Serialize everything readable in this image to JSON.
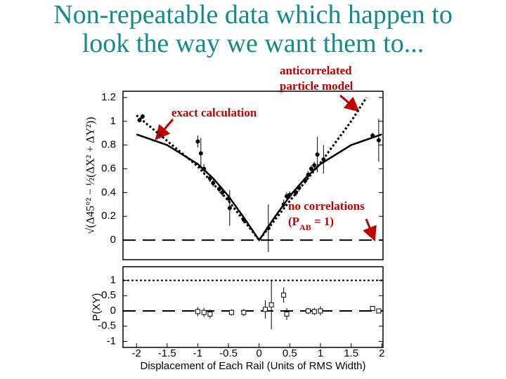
{
  "title": [
    "Non-repeatable data which happen to",
    "look the way we want them to..."
  ],
  "chart_data": [
    {
      "type": "scatter",
      "y_label": "√(Δ45°² − ½(ΔX² + ΔY²))",
      "xlim": [
        -2.22,
        2.02
      ],
      "ylim": [
        -0.165,
        1.253
      ],
      "yticks": [
        0,
        0.2,
        0.4,
        0.6,
        0.8,
        1,
        1.2
      ],
      "x": [
        -1.95,
        -1.9,
        -1.0,
        -0.95,
        -0.9,
        -0.8,
        -0.75,
        -0.65,
        -0.6,
        -0.5,
        -0.48,
        -0.25,
        0.15,
        0.4,
        0.45,
        0.5,
        0.6,
        0.65,
        0.75,
        0.8,
        0.85,
        0.9,
        0.95,
        1.05,
        1.85,
        1.95
      ],
      "values": [
        1.01,
        1.04,
        0.83,
        0.73,
        0.6,
        0.52,
        0.48,
        0.43,
        0.4,
        0.35,
        0.27,
        0.17,
        0.1,
        0.3,
        0.37,
        0.38,
        0.4,
        0.44,
        0.5,
        0.55,
        0.6,
        0.63,
        0.72,
        0.68,
        0.88,
        0.84
      ],
      "errors": [
        0.02,
        0.02,
        0.05,
        0.13,
        0.04,
        0.03,
        0.03,
        0.03,
        0.03,
        0.03,
        0.15,
        0.03,
        0.2,
        0.04,
        0.03,
        0.03,
        0.03,
        0.03,
        0.03,
        0.03,
        0.03,
        0.03,
        0.15,
        0.12,
        0.02,
        0.18
      ],
      "color": "#000000",
      "lines": [
        {
          "style": "solid",
          "color": "#000000",
          "x": [
            -2,
            -1.5,
            -1,
            -0.75,
            -0.5,
            -0.25,
            0,
            0.25,
            0.5,
            0.75,
            1,
            1.5,
            2
          ],
          "values": [
            0.89,
            0.8,
            0.64,
            0.52,
            0.37,
            0.19,
            0,
            0.19,
            0.37,
            0.52,
            0.64,
            0.8,
            0.89
          ]
        },
        {
          "style": "dotted",
          "color": "#000000",
          "x": [
            -2,
            -1,
            -0.5,
            0,
            0.5,
            1,
            1.5,
            1.75
          ],
          "values": [
            1.05,
            0.62,
            0.33,
            0,
            0.33,
            0.65,
            1.0,
            1.2
          ]
        }
      ],
      "hlines": [
        {
          "value": 0,
          "style": "dashed"
        }
      ],
      "annotations": [
        {
          "lines": [
            "anticorrelated",
            "particle model"
          ]
        },
        {
          "lines": [
            "exact calculation"
          ]
        },
        {
          "lines": [
            "no correlations",
            [
              "(P",
              "AB",
              " = 1)"
            ]
          ]
        }
      ]
    },
    {
      "type": "scatter",
      "x_label": "Displacement of Each Rail (Units of RMS Width)",
      "y_label": "P(XY)",
      "xlim": [
        -2.22,
        2.02
      ],
      "ylim": [
        -1.195,
        1.448
      ],
      "xticks": [
        -2,
        -1.5,
        -1,
        -0.5,
        0,
        0.5,
        1,
        1.5,
        2
      ],
      "yticks": [
        -1,
        -0.5,
        0,
        0.5,
        1
      ],
      "x": [
        -1.0,
        -0.9,
        -0.8,
        -0.45,
        -0.25,
        0.1,
        0.2,
        0.4,
        0.45,
        0.8,
        0.9,
        1.0,
        1.85,
        1.95
      ],
      "values": [
        -0.02,
        -0.05,
        -0.1,
        -0.05,
        -0.05,
        0.05,
        0.2,
        0.52,
        -0.1,
        0,
        -0.02,
        0,
        0.08,
        0
      ],
      "errors": [
        0.15,
        0.15,
        0.15,
        0.1,
        0.12,
        0.3,
        0.8,
        0.25,
        0.2,
        0.1,
        0.12,
        0.15,
        0.05,
        0.05
      ],
      "color": "#000000",
      "hlines": [
        {
          "value": 1,
          "style": "dotted"
        },
        {
          "value": 0,
          "style": "dashed"
        }
      ]
    }
  ]
}
